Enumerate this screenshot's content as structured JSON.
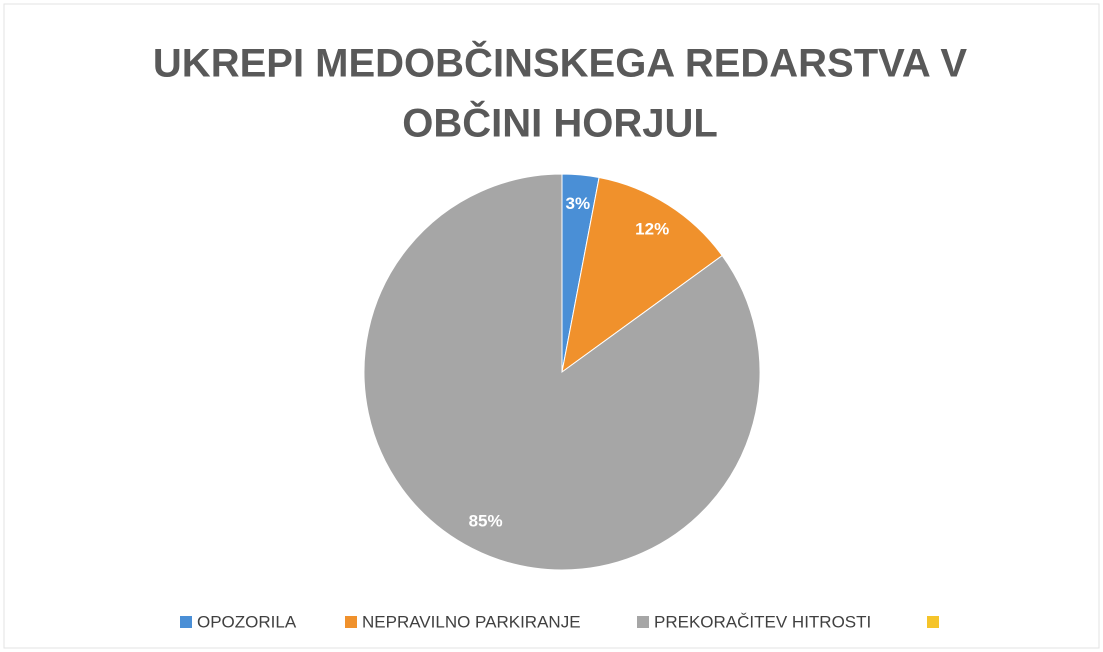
{
  "chart_data": {
    "type": "pie",
    "title": [
      "UKREPI MEDOBČINSKEGA REDARSTVA V",
      "OBČINI HORJUL"
    ],
    "categories": [
      "OPOZORILA",
      "NEPRAVILNO PARKIRANJE",
      "PREKORAČITEV HITROSTI",
      null
    ],
    "values": [
      3,
      12,
      85,
      0
    ],
    "value_labels": [
      "3%",
      "12%",
      "85%",
      null
    ],
    "colors": [
      "#4a8fd6",
      "#f0912c",
      "#a6a6a6",
      "#f5c42a"
    ],
    "legend": "bottom"
  }
}
